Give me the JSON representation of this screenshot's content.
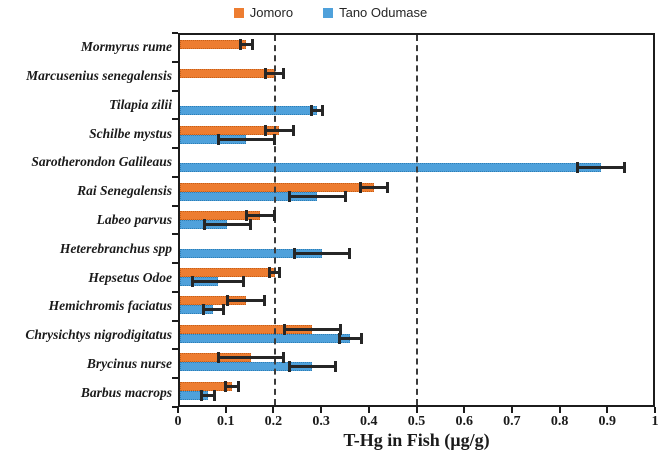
{
  "colors": {
    "jomoro": "#ED7D31",
    "jomoro_border": "#C55F18",
    "tano": "#4FA1DB",
    "tano_border": "#2E7EB5",
    "error_bar": "#262626",
    "axis": "#1C1C1C",
    "reference_line": "#3A3A3A"
  },
  "chart_data": {
    "type": "bar",
    "orientation": "horizontal",
    "title": "",
    "xlabel": "T-Hg in Fish (µg/g)",
    "ylabel": "",
    "xlim": [
      0,
      1
    ],
    "grid": "off",
    "legend_position": "top",
    "reference_lines_x": [
      0.2,
      0.5
    ],
    "x_tick_values": [
      0,
      0.1,
      0.2,
      0.3,
      0.4,
      0.5,
      0.6,
      0.7,
      0.8,
      0.9,
      1
    ],
    "x_tick_labels": [
      "0",
      "0.1",
      "0.2",
      "0.3",
      "0.4",
      "0.5",
      "0.6",
      "0.7",
      "0.8",
      "0.9",
      "1"
    ],
    "categories": [
      "Mormyrus rume",
      "Marcusenius senegalensis",
      "Tilapia zilii",
      "Schilbe mystus",
      "Sarotherondon Galileaus",
      "Rai Senegalensis",
      "Labeo parvus",
      "Heterebranchus spp",
      "Hepsetus Odoe",
      "Hemichromis faciatus",
      "Chrysichtys nigrodigitatus",
      "Brycinus nurse",
      "Barbus macrops"
    ],
    "series": [
      {
        "name": "Jomoro",
        "color": "#ED7D31",
        "border_color": "#C55F18",
        "values": [
          0.14,
          0.2,
          null,
          0.21,
          null,
          0.41,
          0.17,
          null,
          0.2,
          0.14,
          0.28,
          0.15,
          0.11
        ],
        "errors": [
          0.014,
          0.02,
          null,
          0.03,
          null,
          0.03,
          0.03,
          null,
          0.012,
          0.04,
          0.06,
          0.07,
          0.014
        ]
      },
      {
        "name": "Tano Odumase",
        "color": "#4FA1DB",
        "border_color": "#2E7EB5",
        "values": [
          null,
          null,
          0.29,
          0.14,
          0.89,
          0.29,
          0.1,
          0.3,
          0.08,
          0.07,
          0.36,
          0.28,
          0.06
        ],
        "errors": [
          null,
          null,
          0.012,
          0.06,
          0.05,
          0.06,
          0.05,
          0.06,
          0.055,
          0.022,
          0.024,
          0.05,
          0.015
        ]
      }
    ]
  }
}
